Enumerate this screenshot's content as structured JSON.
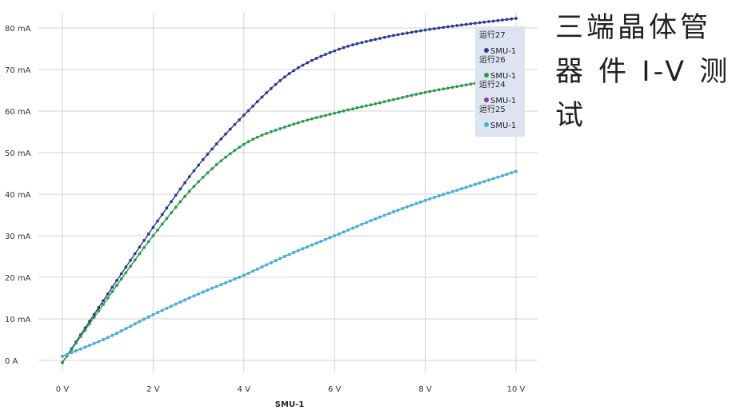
{
  "slide_title": "三端晶体管 器 件 I-V 测试",
  "chart_data": {
    "type": "line",
    "xlabel": "SMU-1",
    "ylabel": "",
    "xlim": [
      0,
      10
    ],
    "ylim": [
      0,
      80
    ],
    "x_tick_labels": [
      "0 V",
      "2 V",
      "4 V",
      "6 V",
      "8 V",
      "10 V"
    ],
    "y_tick_labels": [
      "0 A",
      "10 mA",
      "20 mA",
      "30 mA",
      "40 mA",
      "50 mA",
      "60 mA",
      "70 mA",
      "80 mA"
    ],
    "grid": true,
    "legend_position": "top-right",
    "x": [
      0,
      1,
      2,
      3,
      4,
      5,
      6,
      7,
      8,
      9,
      10
    ],
    "series": [
      {
        "name": "运行27",
        "legend_label": "SMU-1",
        "color": "#2c3d8f",
        "values": [
          -0.5,
          16,
          32,
          47,
          59,
          69,
          74.5,
          77.5,
          79.5,
          81,
          82.3
        ]
      },
      {
        "name": "运行26",
        "legend_label": "SMU-1",
        "color": "#2a9a4a",
        "values": [
          -0.5,
          15,
          30,
          43,
          52,
          56.5,
          59.5,
          62,
          64.5,
          66.5,
          68.5
        ]
      },
      {
        "name": "运行24",
        "legend_label": "SMU-1",
        "color": "#7b3f9e",
        "values": [
          1,
          5.5,
          11,
          16,
          20.5,
          25.5,
          30,
          34.5,
          38.5,
          42,
          45.5
        ]
      },
      {
        "name": "运行25",
        "legend_label": "SMU-1",
        "color": "#3fb6d9",
        "values": [
          1,
          5.5,
          11,
          16,
          20.5,
          25.5,
          30,
          34.5,
          38.5,
          42,
          45.5
        ]
      }
    ]
  }
}
